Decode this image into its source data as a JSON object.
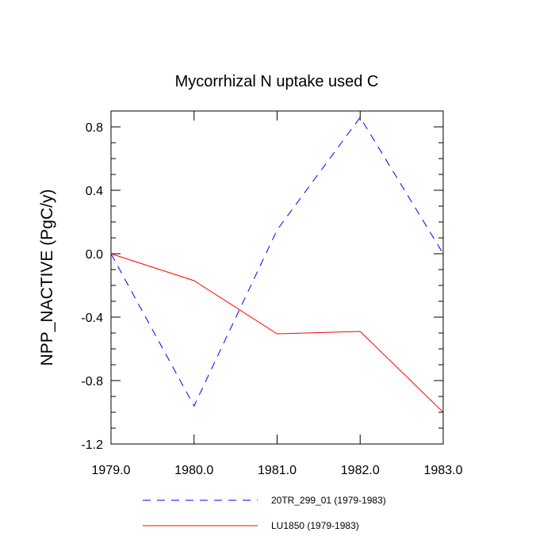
{
  "chart_data": {
    "type": "line",
    "title": "Mycorrhizal N uptake used C",
    "xlabel": "",
    "ylabel": "NPP_NACTIVE  (PgC/y)",
    "xlim": [
      1979.0,
      1983.0
    ],
    "ylim": [
      -1.2,
      0.9
    ],
    "x_ticks": [
      "1979.0",
      "1980.0",
      "1981.0",
      "1982.0",
      "1983.0"
    ],
    "y_ticks": [
      "0.8",
      "0.4",
      "0.0",
      "-0.4",
      "-0.8",
      "-1.2"
    ],
    "x": [
      1979.0,
      1980.0,
      1981.0,
      1982.0,
      1983.0
    ],
    "series": [
      {
        "name": "20TR_299_01 (1979-1983)",
        "color": "#0000ff",
        "dash": "dashed",
        "values": [
          0.0,
          -0.96,
          0.15,
          0.86,
          0.0
        ]
      },
      {
        "name": "LU1850 (1979-1983)",
        "color": "#ff0000",
        "dash": "solid",
        "values": [
          0.0,
          -0.17,
          -0.505,
          -0.49,
          -1.0
        ]
      }
    ],
    "grid": false,
    "legend": "bottom"
  }
}
